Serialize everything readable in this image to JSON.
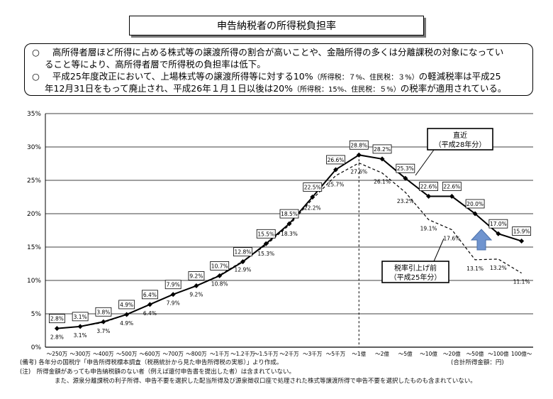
{
  "title": "申告納税者の所得税負担率",
  "notes": [
    {
      "mark": "○",
      "lines": [
        {
          "parts": [
            {
              "t": "高所得者層ほど所得に占める株式等の譲渡所得の割合が高いことや、金融所得の多くは分離課税の対象になってい",
              "small": false
            }
          ]
        },
        {
          "parts": [
            {
              "t": "ること等により、高所得者層で所得税の負担率は低下。",
              "small": false
            }
          ]
        }
      ]
    },
    {
      "mark": "○",
      "lines": [
        {
          "parts": [
            {
              "t": "平成25年度改正において、上場株式等の譲渡所得等に対する10%",
              "small": false
            },
            {
              "t": "（所得税：７%、住民税：３%）",
              "small": true
            },
            {
              "t": "の軽減税率は平成25",
              "small": false
            }
          ]
        },
        {
          "parts": [
            {
              "t": "年12月31日をもって廃止され、平成26年１月１日以後は20%",
              "small": false
            },
            {
              "t": "（所得税：15%、住民税：５%）",
              "small": true
            },
            {
              "t": "の税率が適用されている。",
              "small": false
            }
          ]
        }
      ]
    }
  ],
  "chart_data": {
    "type": "line",
    "title": "",
    "xlabel": "",
    "ylabel": "",
    "ylim": [
      0,
      35
    ],
    "yticks": [
      "0%",
      "5%",
      "10%",
      "15%",
      "20%",
      "25%",
      "30%",
      "35%"
    ],
    "categories": [
      "～250万",
      "～300万",
      "～400万",
      "～500万",
      "～600万",
      "～700万",
      "～800万",
      "～1千万",
      "～1.2千万",
      "～1.5千万",
      "～2千万",
      "～3千万",
      "～5千万",
      "～1億",
      "～2億",
      "～5億",
      "～10億",
      "～20億",
      "～50億",
      "～100億",
      "100億～"
    ],
    "grid": "horizontal",
    "divider_after": "～1億",
    "series": [
      {
        "name": "直近（平成28年分）",
        "style": "solid-markers",
        "color": "#000000",
        "values": [
          2.8,
          3.1,
          3.8,
          4.9,
          6.4,
          7.9,
          9.2,
          10.7,
          12.8,
          15.5,
          18.5,
          22.5,
          26.6,
          28.8,
          28.2,
          25.3,
          22.6,
          22.6,
          20.0,
          17.0,
          15.9
        ],
        "labels": [
          "2.8%",
          "3.1%",
          "3.8%",
          "4.9%",
          "6.4%",
          "7.9%",
          "9.2%",
          "10.7%",
          "12.8%",
          "15.5%",
          "18.5%",
          "22.5%",
          "26.6%",
          "28.8%",
          "28.2%",
          "25.3%",
          "22.6%",
          "22.6%",
          "20.0%",
          "17.0%",
          "15.9%"
        ]
      },
      {
        "name": "税率引上げ前（平成25年分）",
        "style": "dashed",
        "color": "#000000",
        "values": [
          2.8,
          3.1,
          3.7,
          4.9,
          6.4,
          7.9,
          9.2,
          10.8,
          12.9,
          15.3,
          18.3,
          22.2,
          25.7,
          27.6,
          26.1,
          23.2,
          19.1,
          17.6,
          13.1,
          13.2,
          11.1
        ],
        "labels": [
          "2.8%",
          "3.1%",
          "3.7%",
          "4.9%",
          "6.4%",
          "7.9%",
          "9.2%",
          "10.8%",
          "12.9%",
          "15.3%",
          "18.3%",
          "22.2%",
          "25.7%",
          "27.6%",
          "26.1%",
          "23.2%",
          "19.1%",
          "17.6%",
          "13.1%",
          "13.2%",
          "11.1%"
        ]
      }
    ],
    "callouts": [
      {
        "series": 0,
        "line1": "直近",
        "line2": "（平成28年分）"
      },
      {
        "series": 1,
        "line1": "税率引上げ前",
        "line2": "（平成25年分）"
      }
    ],
    "arrow": {
      "color": "#6f94cf",
      "direction": "up"
    },
    "unit_note": "(合計所得金額：円)"
  },
  "footnotes": [
    "(備考) 各年分の国税庁「申告所得税標本調査（税務統計から見た申告所得税の実態）」より作成。",
    "(注)　所得金額があっても申告納税額のない者（例えば還付申告書を提出した者）は含まれていない。",
    "また、源泉分離課税の利子所得、申告不要を選択した配当所得及び源泉徴収口座で処理された株式等譲渡所得で申告不要を選択したものも含まれていない。"
  ]
}
